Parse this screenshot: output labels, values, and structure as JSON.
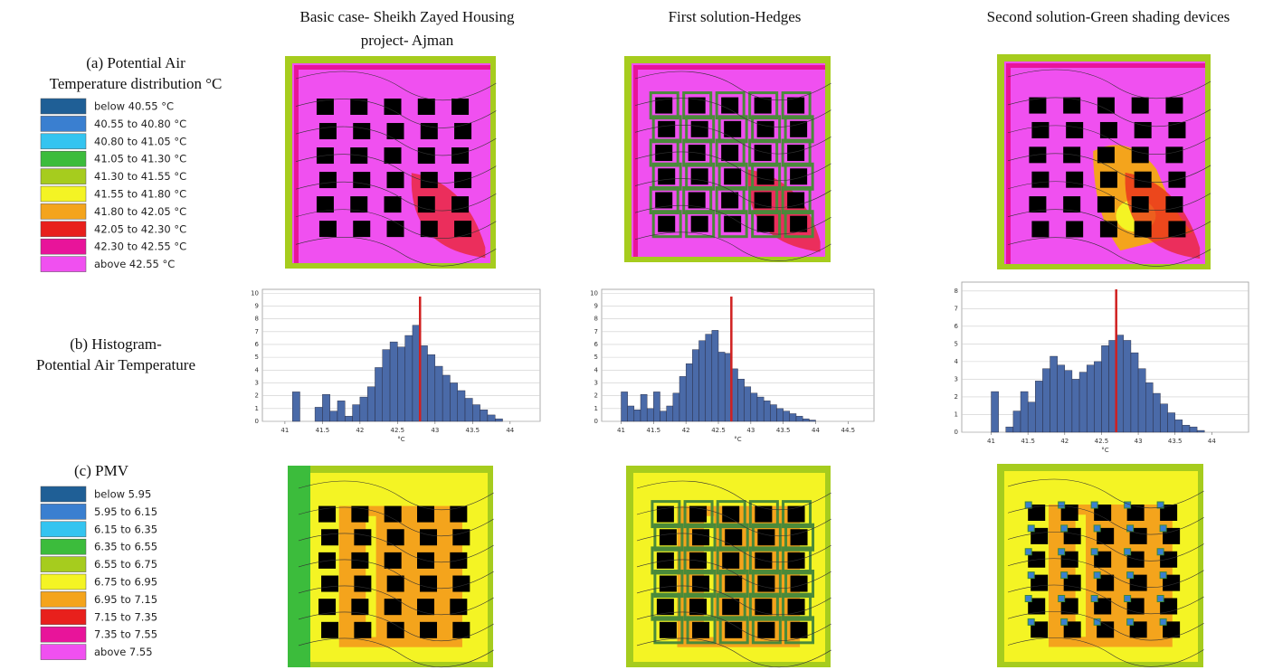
{
  "column_titles": [
    [
      "Basic case- Sheikh Zayed Housing",
      "project- Ajman"
    ],
    [
      "First solution-Hedges"
    ],
    [
      "Second solution-Green shading devices"
    ]
  ],
  "row_labels": {
    "a": [
      "(a) Potential Air",
      "Temperature distribution °C"
    ],
    "b": [
      "(b) Histogram-",
      "Potential Air Temperature"
    ],
    "c": [
      "(c) PMV"
    ]
  },
  "legend_air": [
    {
      "label": "below 40.55 °C",
      "color": "#1f5f96"
    },
    {
      "label": "40.55 to 40.80 °C",
      "color": "#3a7fd0"
    },
    {
      "label": "40.80 to 41.05 °C",
      "color": "#34c4f0"
    },
    {
      "label": "41.05 to 41.30 °C",
      "color": "#3cbc3c"
    },
    {
      "label": "41.30 to 41.55 °C",
      "color": "#a6cc1e"
    },
    {
      "label": "41.55 to 41.80 °C",
      "color": "#f4f424"
    },
    {
      "label": "41.80 to 42.05 °C",
      "color": "#f4a41c"
    },
    {
      "label": "42.05 to 42.30 °C",
      "color": "#e8201c"
    },
    {
      "label": "42.30 to 42.55 °C",
      "color": "#e8149a"
    },
    {
      "label": "above 42.55 °C",
      "color": "#f050f0"
    }
  ],
  "legend_pmv": [
    {
      "label": "below 5.95",
      "color": "#1f5f96"
    },
    {
      "label": "5.95 to 6.15",
      "color": "#3a7fd0"
    },
    {
      "label": "6.15 to 6.35",
      "color": "#34c4f0"
    },
    {
      "label": "6.35 to 6.55",
      "color": "#3cbc3c"
    },
    {
      "label": "6.55 to 6.75",
      "color": "#a6cc1e"
    },
    {
      "label": "6.75 to 6.95",
      "color": "#f4f424"
    },
    {
      "label": "6.95 to 7.15",
      "color": "#f4a41c"
    },
    {
      "label": "7.15 to 7.35",
      "color": "#e8201c"
    },
    {
      "label": "7.35 to 7.55",
      "color": "#e8149a"
    },
    {
      "label": "above 7.55",
      "color": "#f050f0"
    }
  ],
  "chart_data": [
    {
      "type": "histogram",
      "x_label": "°C",
      "color": "#4a6aa8",
      "marker_x": 42.8,
      "marker_color": "#d02020",
      "bins": [
        41.0,
        41.1,
        41.2,
        41.3,
        41.4,
        41.5,
        41.6,
        41.7,
        41.8,
        41.9,
        42.0,
        42.1,
        42.2,
        42.3,
        42.4,
        42.5,
        42.6,
        42.7,
        42.8,
        42.9,
        43.0,
        43.1,
        43.2,
        43.3,
        43.4,
        43.5,
        43.6,
        43.7,
        43.8,
        43.9,
        44.0
      ],
      "values": [
        0,
        2.3,
        0,
        0,
        1.1,
        2.1,
        0.8,
        1.6,
        0.4,
        1.3,
        1.9,
        2.7,
        4.2,
        5.6,
        6.2,
        5.8,
        6.7,
        7.5,
        5.9,
        5.2,
        4.3,
        3.6,
        3.0,
        2.4,
        1.8,
        1.3,
        0.9,
        0.5,
        0.2,
        0
      ],
      "xlim": [
        40.7,
        44.4
      ],
      "xticks": [
        41,
        41.5,
        42,
        42.5,
        43,
        43.5,
        44
      ],
      "ylim": [
        0,
        10.3
      ],
      "yticks": [
        0,
        1,
        2,
        3,
        4,
        5,
        6,
        7,
        8,
        9,
        10
      ],
      "grid": true
    },
    {
      "type": "histogram",
      "x_label": "°C",
      "color": "#4a6aa8",
      "marker_x": 42.7,
      "marker_color": "#d02020",
      "bins": [
        41.0,
        41.1,
        41.2,
        41.3,
        41.4,
        41.5,
        41.6,
        41.7,
        41.8,
        41.9,
        42.0,
        42.1,
        42.2,
        42.3,
        42.4,
        42.5,
        42.6,
        42.7,
        42.8,
        42.9,
        43.0,
        43.1,
        43.2,
        43.3,
        43.4,
        43.5,
        43.6,
        43.7,
        43.8,
        43.9,
        44.0
      ],
      "values": [
        2.3,
        1.2,
        0.9,
        2.1,
        1.0,
        2.3,
        0.8,
        1.2,
        2.2,
        3.5,
        4.5,
        5.6,
        6.3,
        6.8,
        7.1,
        5.4,
        5.3,
        4.1,
        3.3,
        2.7,
        2.2,
        1.9,
        1.6,
        1.3,
        1.0,
        0.8,
        0.6,
        0.4,
        0.2,
        0.1
      ],
      "xlim": [
        40.7,
        44.9
      ],
      "xticks": [
        41,
        41.5,
        42,
        42.5,
        43,
        43.5,
        44,
        44.5
      ],
      "ylim": [
        0,
        10.3
      ],
      "yticks": [
        0,
        1,
        2,
        3,
        4,
        5,
        6,
        7,
        8,
        9,
        10
      ],
      "grid": true
    },
    {
      "type": "histogram",
      "x_label": "°C",
      "color": "#4a6aa8",
      "marker_x": 42.7,
      "marker_color": "#d02020",
      "bins": [
        41.0,
        41.1,
        41.2,
        41.3,
        41.4,
        41.5,
        41.6,
        41.7,
        41.8,
        41.9,
        42.0,
        42.1,
        42.2,
        42.3,
        42.4,
        42.5,
        42.6,
        42.7,
        42.8,
        42.9,
        43.0,
        43.1,
        43.2,
        43.3,
        43.4,
        43.5,
        43.6,
        43.7,
        43.8,
        43.9,
        44.0
      ],
      "values": [
        2.3,
        0,
        0.3,
        1.2,
        2.3,
        1.7,
        2.9,
        3.6,
        4.3,
        3.8,
        3.5,
        3.0,
        3.4,
        3.8,
        4.0,
        4.9,
        5.2,
        5.5,
        5.2,
        4.5,
        3.6,
        2.8,
        2.2,
        1.6,
        1.1,
        0.7,
        0.4,
        0.3,
        0.1,
        0
      ],
      "xlim": [
        40.6,
        44.5
      ],
      "xticks": [
        41,
        41.5,
        42,
        42.5,
        43,
        43.5,
        44
      ],
      "ylim": [
        0,
        8.5
      ],
      "yticks": [
        0,
        1,
        2,
        3,
        4,
        5,
        6,
        7,
        8
      ],
      "grid": true
    }
  ]
}
